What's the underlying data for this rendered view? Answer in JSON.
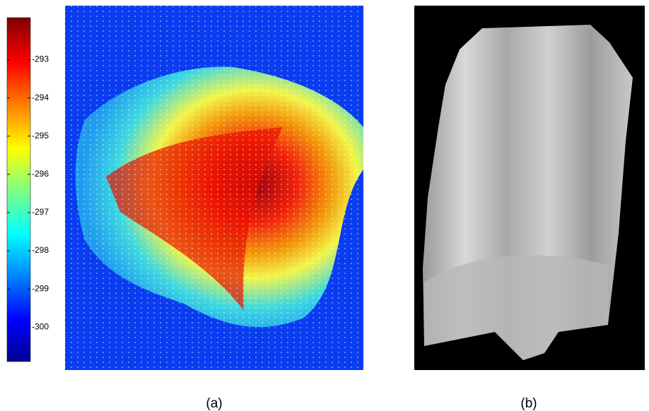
{
  "panels": [
    {
      "label": "(a)",
      "colorbar": {
        "lim": [
          -300.9,
          -291.9
        ],
        "ticks": [
          -293,
          -294,
          -295,
          -296,
          -297,
          -298,
          -299,
          -300
        ]
      }
    },
    {
      "label": "(b)"
    }
  ]
}
